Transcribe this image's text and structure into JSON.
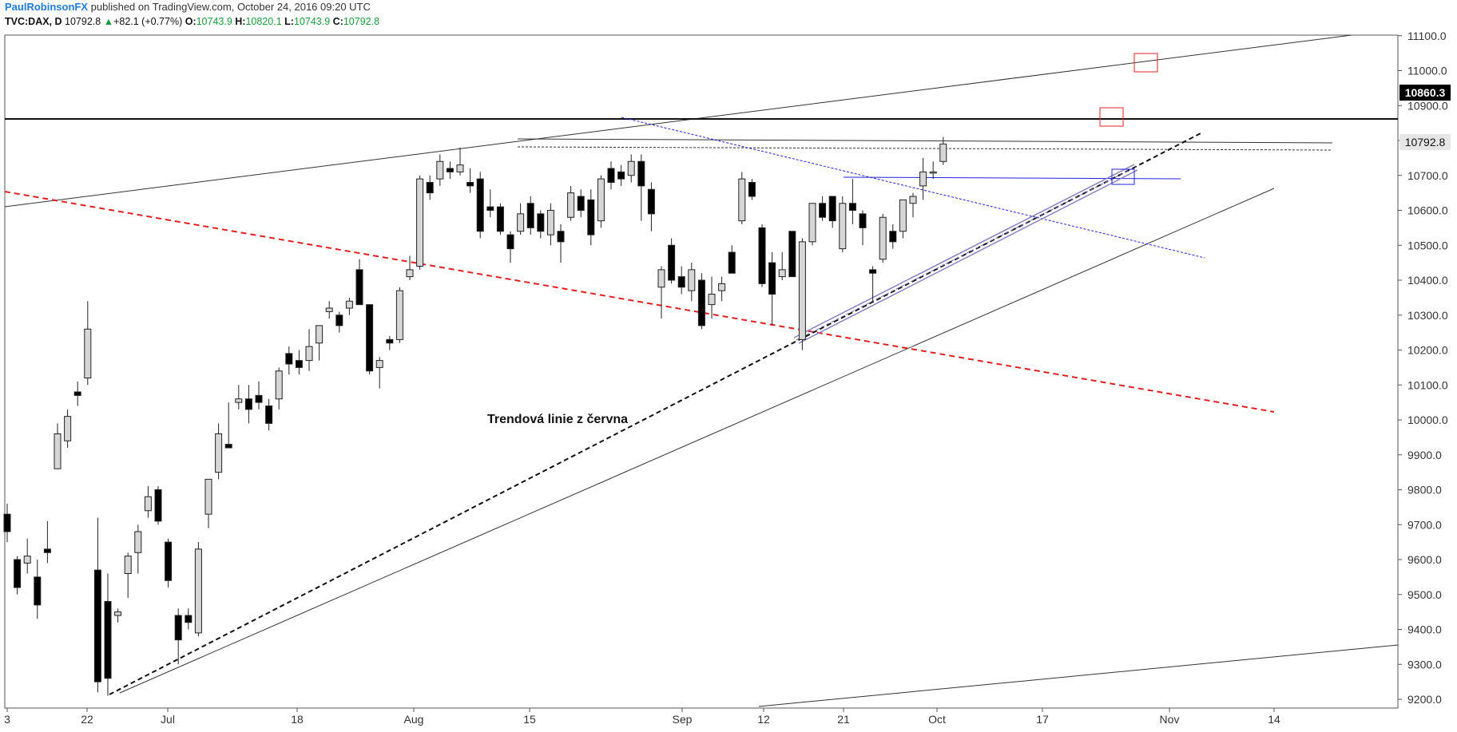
{
  "header": {
    "author": "PaulRobinsonFX",
    "published_text": "published on TradingView.com, October 24, 2016 09:20 UTC",
    "symbol": "TVC:DAX, D",
    "last": "10792.8",
    "change": "+82.1 (+0.77%)",
    "open_label": "O:",
    "open": "10743.9",
    "high_label": "H:",
    "high": "10820.1",
    "low_label": "L:",
    "low": "10743.9",
    "close_label": "C:",
    "close": "10792.8",
    "up_arrow_icon": "triangle-up-icon"
  },
  "price_badges": {
    "level": "10860.3",
    "last": "10792.8"
  },
  "annotation": "Trendová linie z června",
  "colors": {
    "up_candle": "#d6d6d6",
    "down_candle": "#000000",
    "support_dashed": "#e02020",
    "blue_trend": "#2222dd",
    "purple_channel": "#8a7fc0",
    "red_box": "#e02020",
    "blue_box": "#2222dd"
  },
  "chart_data": {
    "type": "candlestick",
    "symbol": "TVC:DAX",
    "interval": "D",
    "ylim": [
      9180,
      11100
    ],
    "y_ticks": [
      "9200.0",
      "9300.0",
      "9400.0",
      "9500.0",
      "9600.0",
      "9700.0",
      "9800.0",
      "9900.0",
      "10000.0",
      "10100.0",
      "10200.0",
      "10300.0",
      "10400.0",
      "10500.0",
      "10600.0",
      "10700.0",
      "10800.0",
      "10900.0",
      "11000.0",
      "11100.0"
    ],
    "x_ticks": [
      "3",
      "22",
      "Jul",
      "18",
      "Aug",
      "15",
      "Sep",
      "12",
      "21",
      "Oct",
      "17",
      "Nov",
      "14"
    ],
    "grid": false,
    "candles": [
      {
        "date": "Jun 13",
        "o": 9730,
        "h": 9760,
        "l": 9650,
        "c": 9680
      },
      {
        "date": "Jun 14",
        "o": 9600,
        "h": 9610,
        "l": 9500,
        "c": 9520
      },
      {
        "date": "Jun 15",
        "o": 9590,
        "h": 9660,
        "l": 9560,
        "c": 9610
      },
      {
        "date": "Jun 16",
        "o": 9550,
        "h": 9600,
        "l": 9430,
        "c": 9470
      },
      {
        "date": "Jun 17",
        "o": 9630,
        "h": 9710,
        "l": 9590,
        "c": 9620
      },
      {
        "date": "Jun 20",
        "o": 9860,
        "h": 9990,
        "l": 9860,
        "c": 9960
      },
      {
        "date": "Jun 21",
        "o": 9940,
        "h": 10030,
        "l": 9920,
        "c": 10010
      },
      {
        "date": "Jun 22",
        "o": 10080,
        "h": 10110,
        "l": 10040,
        "c": 10070
      },
      {
        "date": "Jun 23",
        "o": 10120,
        "h": 10340,
        "l": 10100,
        "c": 10260
      },
      {
        "date": "Jun 24",
        "o": 9570,
        "h": 9720,
        "l": 9220,
        "c": 9250
      },
      {
        "date": "Jun 27",
        "o": 9480,
        "h": 9560,
        "l": 9210,
        "c": 9260
      },
      {
        "date": "Jun 28",
        "o": 9440,
        "h": 9460,
        "l": 9420,
        "c": 9450
      },
      {
        "date": "Jun 29",
        "o": 9560,
        "h": 9620,
        "l": 9490,
        "c": 9610
      },
      {
        "date": "Jun 30",
        "o": 9620,
        "h": 9700,
        "l": 9560,
        "c": 9680
      },
      {
        "date": "Jul 1",
        "o": 9740,
        "h": 9810,
        "l": 9720,
        "c": 9780
      },
      {
        "date": "Jul 4",
        "o": 9800,
        "h": 9810,
        "l": 9700,
        "c": 9710
      },
      {
        "date": "Jul 5",
        "o": 9650,
        "h": 9660,
        "l": 9520,
        "c": 9540
      },
      {
        "date": "Jul 6",
        "o": 9440,
        "h": 9460,
        "l": 9300,
        "c": 9370
      },
      {
        "date": "Jul 7",
        "o": 9440,
        "h": 9460,
        "l": 9400,
        "c": 9420
      },
      {
        "date": "Jul 8",
        "o": 9390,
        "h": 9650,
        "l": 9380,
        "c": 9630
      },
      {
        "date": "Jul 11",
        "o": 9730,
        "h": 9830,
        "l": 9690,
        "c": 9830
      },
      {
        "date": "Jul 12",
        "o": 9850,
        "h": 9990,
        "l": 9830,
        "c": 9960
      },
      {
        "date": "Jul 13",
        "o": 9930,
        "h": 10050,
        "l": 9920,
        "c": 9920
      },
      {
        "date": "Jul 14",
        "o": 10050,
        "h": 10100,
        "l": 10030,
        "c": 10060
      },
      {
        "date": "Jul 15",
        "o": 10060,
        "h": 10100,
        "l": 9990,
        "c": 10030
      },
      {
        "date": "Jul 18",
        "o": 10070,
        "h": 10110,
        "l": 10030,
        "c": 10050
      },
      {
        "date": "Jul 19",
        "o": 10040,
        "h": 10060,
        "l": 9970,
        "c": 9990
      },
      {
        "date": "Jul 20",
        "o": 10060,
        "h": 10150,
        "l": 10030,
        "c": 10140
      },
      {
        "date": "Jul 21",
        "o": 10190,
        "h": 10210,
        "l": 10130,
        "c": 10160
      },
      {
        "date": "Jul 22",
        "o": 10170,
        "h": 10200,
        "l": 10130,
        "c": 10150
      },
      {
        "date": "Jul 25",
        "o": 10170,
        "h": 10260,
        "l": 10140,
        "c": 10210
      },
      {
        "date": "Jul 26",
        "o": 10220,
        "h": 10270,
        "l": 10170,
        "c": 10270
      },
      {
        "date": "Jul 27",
        "o": 10310,
        "h": 10340,
        "l": 10290,
        "c": 10320
      },
      {
        "date": "Jul 28",
        "o": 10300,
        "h": 10310,
        "l": 10250,
        "c": 10270
      },
      {
        "date": "Jul 29",
        "o": 10320,
        "h": 10350,
        "l": 10300,
        "c": 10340
      },
      {
        "date": "Aug 1",
        "o": 10430,
        "h": 10460,
        "l": 10330,
        "c": 10330
      },
      {
        "date": "Aug 2",
        "o": 10330,
        "h": 10330,
        "l": 10130,
        "c": 10140
      },
      {
        "date": "Aug 3",
        "o": 10150,
        "h": 10180,
        "l": 10090,
        "c": 10170
      },
      {
        "date": "Aug 4",
        "o": 10230,
        "h": 10240,
        "l": 10200,
        "c": 10220
      },
      {
        "date": "Aug 5",
        "o": 10230,
        "h": 10380,
        "l": 10220,
        "c": 10370
      },
      {
        "date": "Aug 8",
        "o": 10410,
        "h": 10470,
        "l": 10400,
        "c": 10430
      },
      {
        "date": "Aug 9",
        "o": 10440,
        "h": 10700,
        "l": 10430,
        "c": 10690
      },
      {
        "date": "Aug 10",
        "o": 10680,
        "h": 10700,
        "l": 10630,
        "c": 10650
      },
      {
        "date": "Aug 11",
        "o": 10690,
        "h": 10760,
        "l": 10670,
        "c": 10740
      },
      {
        "date": "Aug 12",
        "o": 10720,
        "h": 10740,
        "l": 10690,
        "c": 10710
      },
      {
        "date": "Aug 15",
        "o": 10710,
        "h": 10780,
        "l": 10700,
        "c": 10730
      },
      {
        "date": "Aug 16",
        "o": 10680,
        "h": 10720,
        "l": 10650,
        "c": 10670
      },
      {
        "date": "Aug 17",
        "o": 10690,
        "h": 10710,
        "l": 10520,
        "c": 10540
      },
      {
        "date": "Aug 18",
        "o": 10610,
        "h": 10660,
        "l": 10580,
        "c": 10600
      },
      {
        "date": "Aug 19",
        "o": 10610,
        "h": 10620,
        "l": 10530,
        "c": 10540
      },
      {
        "date": "Aug 22",
        "o": 10530,
        "h": 10540,
        "l": 10450,
        "c": 10490
      },
      {
        "date": "Aug 23",
        "o": 10540,
        "h": 10620,
        "l": 10530,
        "c": 10590
      },
      {
        "date": "Aug 24",
        "o": 10620,
        "h": 10640,
        "l": 10530,
        "c": 10550
      },
      {
        "date": "Aug 25",
        "o": 10590,
        "h": 10600,
        "l": 10520,
        "c": 10540
      },
      {
        "date": "Aug 26",
        "o": 10530,
        "h": 10620,
        "l": 10500,
        "c": 10600
      },
      {
        "date": "Aug 29",
        "o": 10540,
        "h": 10560,
        "l": 10450,
        "c": 10510
      },
      {
        "date": "Aug 30",
        "o": 10580,
        "h": 10670,
        "l": 10570,
        "c": 10650
      },
      {
        "date": "Aug 31",
        "o": 10640,
        "h": 10660,
        "l": 10580,
        "c": 10600
      },
      {
        "date": "Sep 1",
        "o": 10630,
        "h": 10660,
        "l": 10500,
        "c": 10530
      },
      {
        "date": "Sep 2",
        "o": 10570,
        "h": 10700,
        "l": 10550,
        "c": 10690
      },
      {
        "date": "Sep 5",
        "o": 10720,
        "h": 10740,
        "l": 10660,
        "c": 10680
      },
      {
        "date": "Sep 6",
        "o": 10710,
        "h": 10730,
        "l": 10670,
        "c": 10690
      },
      {
        "date": "Sep 7",
        "o": 10700,
        "h": 10760,
        "l": 10680,
        "c": 10740
      },
      {
        "date": "Sep 8",
        "o": 10740,
        "h": 10760,
        "l": 10570,
        "c": 10670
      },
      {
        "date": "Sep 9",
        "o": 10660,
        "h": 10680,
        "l": 10540,
        "c": 10590
      },
      {
        "date": "Sep 12",
        "o": 10380,
        "h": 10440,
        "l": 10290,
        "c": 10430
      },
      {
        "date": "Sep 13",
        "o": 10500,
        "h": 10520,
        "l": 10390,
        "c": 10400
      },
      {
        "date": "Sep 14",
        "o": 10410,
        "h": 10440,
        "l": 10360,
        "c": 10380
      },
      {
        "date": "Sep 15",
        "o": 10370,
        "h": 10450,
        "l": 10340,
        "c": 10430
      },
      {
        "date": "Sep 16",
        "o": 10400,
        "h": 10420,
        "l": 10260,
        "c": 10270
      },
      {
        "date": "Sep 19",
        "o": 10330,
        "h": 10410,
        "l": 10290,
        "c": 10360
      },
      {
        "date": "Sep 20",
        "o": 10370,
        "h": 10410,
        "l": 10340,
        "c": 10390
      },
      {
        "date": "Sep 21",
        "o": 10480,
        "h": 10500,
        "l": 10420,
        "c": 10420
      },
      {
        "date": "Sep 22",
        "o": 10570,
        "h": 10710,
        "l": 10560,
        "c": 10690
      },
      {
        "date": "Sep 23",
        "o": 10680,
        "h": 10690,
        "l": 10630,
        "c": 10640
      },
      {
        "date": "Sep 26",
        "o": 10550,
        "h": 10560,
        "l": 10380,
        "c": 10390
      },
      {
        "date": "Sep 27",
        "o": 10450,
        "h": 10480,
        "l": 10270,
        "c": 10360
      },
      {
        "date": "Sep 28",
        "o": 10410,
        "h": 10480,
        "l": 10400,
        "c": 10430
      },
      {
        "date": "Sep 29",
        "o": 10540,
        "h": 10540,
        "l": 10410,
        "c": 10410
      },
      {
        "date": "Sep 30",
        "o": 10230,
        "h": 10520,
        "l": 10200,
        "c": 10510
      },
      {
        "date": "Oct 4",
        "o": 10510,
        "h": 10620,
        "l": 10500,
        "c": 10620
      },
      {
        "date": "Oct 5",
        "o": 10620,
        "h": 10640,
        "l": 10570,
        "c": 10580
      },
      {
        "date": "Oct 6",
        "o": 10640,
        "h": 10640,
        "l": 10550,
        "c": 10570
      },
      {
        "date": "Oct 7",
        "o": 10490,
        "h": 10640,
        "l": 10480,
        "c": 10620
      },
      {
        "date": "Oct 10",
        "o": 10620,
        "h": 10690,
        "l": 10560,
        "c": 10600
      },
      {
        "date": "Oct 11",
        "o": 10590,
        "h": 10600,
        "l": 10500,
        "c": 10550
      },
      {
        "date": "Oct 12",
        "o": 10430,
        "h": 10440,
        "l": 10340,
        "c": 10420
      },
      {
        "date": "Oct 13",
        "o": 10460,
        "h": 10590,
        "l": 10450,
        "c": 10580
      },
      {
        "date": "Oct 14",
        "o": 10540,
        "h": 10560,
        "l": 10490,
        "c": 10510
      },
      {
        "date": "Oct 17",
        "o": 10540,
        "h": 10630,
        "l": 10520,
        "c": 10630
      },
      {
        "date": "Oct 18",
        "o": 10620,
        "h": 10650,
        "l": 10580,
        "c": 10640
      },
      {
        "date": "Oct 19",
        "o": 10670,
        "h": 10750,
        "l": 10630,
        "c": 10710
      },
      {
        "date": "Oct 20",
        "o": 10710,
        "h": 10740,
        "l": 10690,
        "c": 10710
      },
      {
        "date": "Oct 21",
        "o": 10740,
        "h": 10810,
        "l": 10730,
        "c": 10790
      }
    ]
  }
}
